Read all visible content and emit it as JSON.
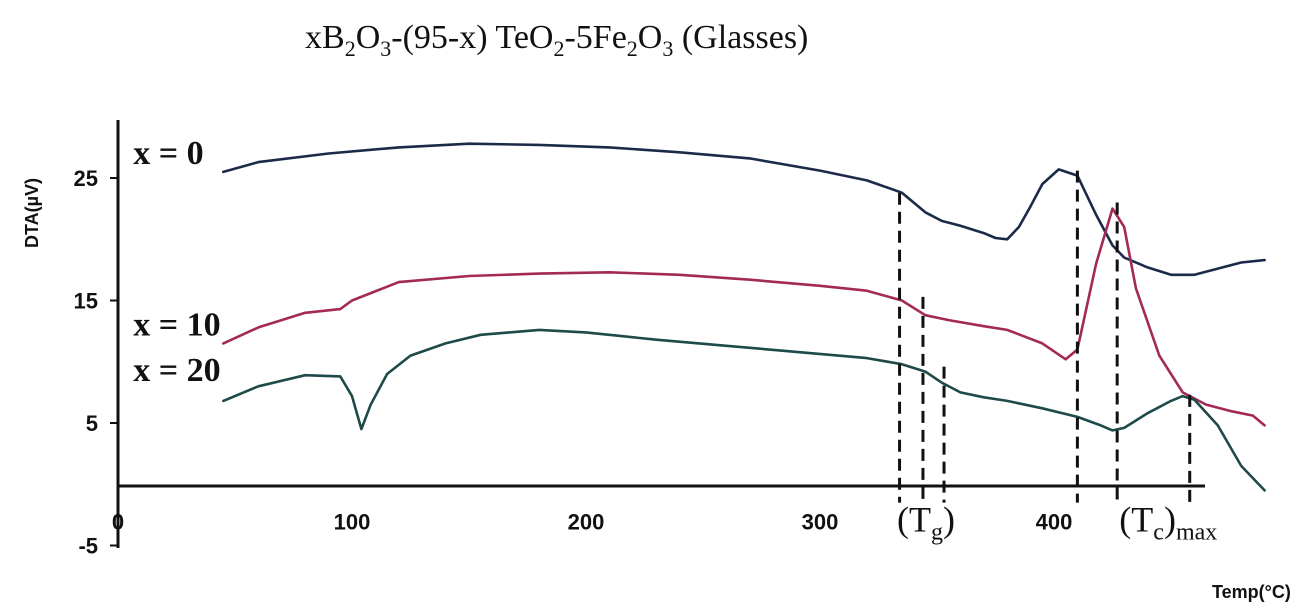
{
  "chart_data": {
    "type": "line",
    "title": {
      "part1": "xB",
      "sub1": "2",
      "part2": "O",
      "sub2": "3",
      "part3": "-(95-x) TeO",
      "sub3": "2",
      "part4": "-5Fe",
      "sub4": "2",
      "part5": "O",
      "sub5": "3",
      "part6": " (Glasses)"
    },
    "xlabel": "Temp(°C)",
    "ylabel": "DTA(µV)",
    "xlim": [
      0,
      490
    ],
    "ylim": [
      -5,
      30
    ],
    "x_ticks": [
      0,
      100,
      200,
      300,
      400
    ],
    "x_tick_labels": [
      "0",
      "100",
      "200",
      "300",
      "400"
    ],
    "y_ticks": [
      25,
      15,
      5,
      -5
    ],
    "y_tick_labels": [
      "25",
      "15",
      "5",
      "-5"
    ],
    "series": [
      {
        "name": "x = 0",
        "color": "#1c2a4a",
        "x": [
          45,
          60,
          90,
          120,
          150,
          180,
          210,
          240,
          270,
          300,
          320,
          335,
          345,
          352,
          360,
          370,
          375,
          380,
          385,
          390,
          395,
          402,
          410,
          418,
          425,
          430,
          440,
          450,
          460,
          470,
          480,
          490
        ],
        "y": [
          25.5,
          26.3,
          27.0,
          27.5,
          27.8,
          27.7,
          27.5,
          27.1,
          26.6,
          25.6,
          24.8,
          23.8,
          22.2,
          21.5,
          21.1,
          20.5,
          20.1,
          20.0,
          21.0,
          22.7,
          24.5,
          25.7,
          25.2,
          22.0,
          19.5,
          18.5,
          17.7,
          17.1,
          17.1,
          17.6,
          18.1,
          18.3
        ]
      },
      {
        "name": "x = 10",
        "color": "#a32a57",
        "x": [
          45,
          60,
          80,
          95,
          100,
          120,
          150,
          180,
          210,
          240,
          270,
          300,
          320,
          335,
          345,
          355,
          370,
          380,
          395,
          405,
          410,
          418,
          425,
          430,
          435,
          445,
          455,
          465,
          475,
          485,
          490
        ],
        "y": [
          11.5,
          12.8,
          14.0,
          14.3,
          15.0,
          16.5,
          17.0,
          17.2,
          17.3,
          17.1,
          16.7,
          16.2,
          15.8,
          15.0,
          13.8,
          13.4,
          12.9,
          12.6,
          11.5,
          10.2,
          11.0,
          18.0,
          22.5,
          21.0,
          16.0,
          10.5,
          7.5,
          6.5,
          6.0,
          5.6,
          4.8
        ]
      },
      {
        "name": "x = 20",
        "color": "#1e4a4a",
        "x": [
          45,
          60,
          80,
          95,
          100,
          104,
          108,
          115,
          125,
          140,
          155,
          180,
          200,
          230,
          260,
          290,
          320,
          335,
          345,
          352,
          360,
          370,
          380,
          395,
          410,
          420,
          425,
          430,
          440,
          450,
          455,
          460,
          470,
          480,
          490
        ],
        "y": [
          6.8,
          8.0,
          8.9,
          8.8,
          7.2,
          4.5,
          6.5,
          9.0,
          10.5,
          11.5,
          12.2,
          12.6,
          12.4,
          11.8,
          11.3,
          10.8,
          10.3,
          9.8,
          9.2,
          8.3,
          7.5,
          7.1,
          6.8,
          6.2,
          5.5,
          4.8,
          4.4,
          4.6,
          5.8,
          6.8,
          7.2,
          6.9,
          4.8,
          1.5,
          -0.5
        ]
      }
    ],
    "markers": [
      {
        "x": 334,
        "y_top": 23.8
      },
      {
        "x": 344,
        "y_top": 15.3
      },
      {
        "x": 353,
        "y_top": 9.6
      },
      {
        "x": 410,
        "y_top": 25.6
      },
      {
        "x": 427,
        "y_top": 23.0
      },
      {
        "x": 458,
        "y_top": 7.3
      }
    ],
    "annotations": [
      {
        "text": "T",
        "sub": "g",
        "x": 350,
        "y": -5
      },
      {
        "text": "T",
        "sub": "c",
        "suffix": "max",
        "x": 445,
        "y": -5
      }
    ]
  }
}
